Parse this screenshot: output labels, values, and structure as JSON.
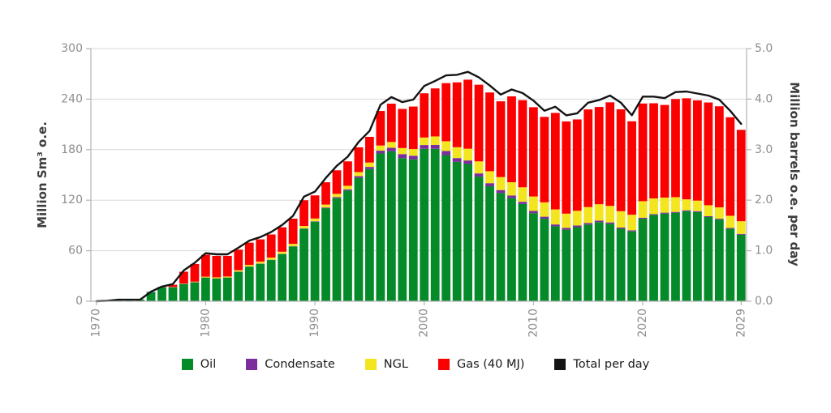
{
  "chart_data": {
    "type": "bar",
    "stacked": true,
    "title": "",
    "grid": true,
    "legend_position": "bottom",
    "categories": [
      1970,
      1971,
      1972,
      1973,
      1974,
      1975,
      1976,
      1977,
      1978,
      1979,
      1980,
      1981,
      1982,
      1983,
      1984,
      1985,
      1986,
      1987,
      1988,
      1989,
      1990,
      1991,
      1992,
      1993,
      1994,
      1995,
      1996,
      1997,
      1998,
      1999,
      2000,
      2001,
      2002,
      2003,
      2004,
      2005,
      2006,
      2007,
      2008,
      2009,
      2010,
      2011,
      2012,
      2013,
      2014,
      2015,
      2016,
      2017,
      2018,
      2019,
      2020,
      2021,
      2022,
      2023,
      2024,
      2025,
      2026,
      2027,
      2028,
      2029
    ],
    "series": [
      {
        "name": "Oil",
        "color": "#048a28",
        "values": [
          0,
          0.4,
          1.9,
          1.9,
          2.0,
          11,
          16.5,
          16.5,
          20.5,
          22.5,
          28,
          27,
          28,
          35,
          41,
          44.5,
          49,
          56,
          65,
          86,
          94.5,
          110.5,
          122.5,
          131.5,
          146.5,
          157,
          175.5,
          178,
          170,
          168.5,
          181,
          181,
          173.5,
          165.5,
          163,
          148,
          136.5,
          128.5,
          122.5,
          115.5,
          104.5,
          98,
          89,
          85,
          88,
          91,
          94,
          92,
          86,
          83,
          98,
          102.5,
          104,
          105,
          107,
          106,
          100,
          97,
          86,
          79
        ]
      },
      {
        "name": "Condensate",
        "color": "#7c2e9d",
        "values": [
          0,
          0,
          0,
          0,
          0,
          0.1,
          0.1,
          0.2,
          0.2,
          0.2,
          0.2,
          0.2,
          0.2,
          0.2,
          0.2,
          0.3,
          0.3,
          0.3,
          0.3,
          0.4,
          0.5,
          0.8,
          1.1,
          1.4,
          2.0,
          2.5,
          3.3,
          4.2,
          4.7,
          4.3,
          4.5,
          4.6,
          4.9,
          4.5,
          4.2,
          3.8,
          3.7,
          3.5,
          3.1,
          2.6,
          2.7,
          2.4,
          2.2,
          2.1,
          2.0,
          1.9,
          1.8,
          1.6,
          1.5,
          1.3,
          1.2,
          1.0,
          1.2,
          1.1,
          1.0,
          1.0,
          1.0,
          1.0,
          1.0,
          1.0
        ]
      },
      {
        "name": "NGL",
        "color": "#f3e51f",
        "values": [
          0,
          0,
          0,
          0,
          0,
          0,
          0.1,
          0.3,
          0.4,
          0.6,
          1.0,
          1.2,
          1.2,
          1.6,
          1.9,
          2.2,
          2.5,
          2.5,
          2.8,
          3.0,
          3.2,
          3.5,
          3.9,
          4.2,
          4.8,
          5.2,
          6.1,
          6.9,
          7.2,
          7.9,
          8.9,
          10.1,
          11.6,
          12.9,
          13.9,
          14.3,
          14.2,
          15.4,
          15.7,
          17.2,
          17.2,
          17.0,
          17.9,
          16.9,
          17.4,
          18.9,
          19.4,
          19.6,
          19.4,
          18.4,
          19.6,
          18.6,
          17.9,
          17.5,
          13.0,
          12.5,
          13.0,
          13.5,
          14.5,
          15.0
        ]
      },
      {
        "name": "Gas (40 MJ)",
        "color": "#fb0000",
        "values": [
          0,
          0,
          0,
          0,
          0,
          0,
          0.3,
          2.6,
          14,
          21,
          26,
          25.5,
          24.5,
          24.5,
          26.5,
          26.5,
          27.5,
          29,
          30,
          30.5,
          27.5,
          26.5,
          28,
          29,
          29.5,
          30.5,
          41,
          45.5,
          46.5,
          50.5,
          52.5,
          57,
          69,
          77,
          82,
          91,
          93.5,
          90,
          102,
          103.5,
          106,
          101.5,
          114.5,
          109.5,
          108.5,
          116,
          115.5,
          123,
          121,
          111,
          116,
          113,
          110,
          116.5,
          120,
          119,
          122,
          120,
          117,
          108.5
        ]
      }
    ],
    "line_series": {
      "name": "Total per day",
      "color": "#141414",
      "axis": "right",
      "values": [
        0.0,
        0.01,
        0.03,
        0.03,
        0.03,
        0.19,
        0.29,
        0.34,
        0.61,
        0.76,
        0.95,
        0.93,
        0.93,
        1.06,
        1.2,
        1.27,
        1.37,
        1.51,
        1.69,
        2.07,
        2.17,
        2.44,
        2.68,
        2.86,
        3.15,
        3.37,
        3.89,
        4.04,
        3.94,
        3.99,
        4.26,
        4.36,
        4.47,
        4.48,
        4.54,
        4.43,
        4.27,
        4.09,
        4.19,
        4.12,
        3.97,
        3.77,
        3.85,
        3.68,
        3.72,
        3.93,
        3.98,
        4.07,
        3.93,
        3.68,
        4.05,
        4.05,
        4.02,
        4.14,
        4.15,
        4.11,
        4.07,
        3.99,
        3.77,
        3.51
      ]
    },
    "left_axis": {
      "label": "Million Sm³ o.e.",
      "min": 0,
      "max": 300,
      "ticks": [
        0,
        60,
        120,
        180,
        240,
        300
      ]
    },
    "right_axis": {
      "label": "Million barrels o.e. per day",
      "min": 0,
      "max": 5,
      "ticks": [
        "0.0",
        "1.0",
        "2.0",
        "3.0",
        "4.0",
        "5.0"
      ]
    },
    "x_axis": {
      "tick_years": [
        1970,
        1980,
        1990,
        2000,
        2010,
        2020,
        2029
      ],
      "tick_labels": [
        "1970",
        "1980",
        "1990",
        "2000",
        "2010",
        "2020",
        "2029"
      ]
    },
    "legend": [
      "Oil",
      "Condensate",
      "NGL",
      "Gas (40 MJ)",
      "Total per day"
    ]
  },
  "style_colors": {
    "grid": "#d9d9d9",
    "axis": "#b3b3b3",
    "tick_text": "#8e8e8e",
    "axis_title_text": "#3d3d3d",
    "background": "#ffffff"
  }
}
